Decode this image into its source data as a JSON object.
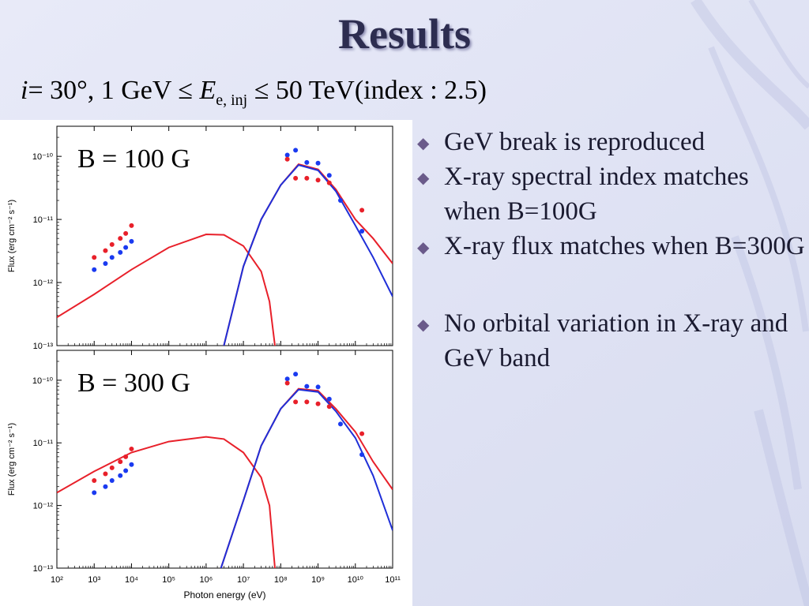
{
  "slide": {
    "title": "Results",
    "formula": {
      "i_label": "i",
      "angle": "= 30°, 1 GeV ≤ ",
      "E": "E",
      "sub": "e, inj",
      "rest": " ≤ 50 TeV(index : 2.5)"
    },
    "bullets": [
      {
        "text": "GeV break is reproduced"
      },
      {
        "text": "X-ray spectral index matches when B=100G"
      },
      {
        "text": "X-ray flux matches when B=300G"
      },
      {
        "text": "No orbital variation in X-ray and GeV band"
      }
    ],
    "colors": {
      "background": "#e4e6f6",
      "title": "#2d2d50",
      "model_red": "#e8202a",
      "model_blue": "#1f2fd8",
      "data_red": "#e8202a",
      "data_blue": "#1a3af0"
    }
  },
  "chart_data": [
    {
      "type": "line",
      "annotation": "B = 100 G",
      "xlabel": "Photon energy (eV)",
      "ylabel": "Flux (erg cm⁻² s⁻¹)",
      "xlim": [
        100,
        100000000000
      ],
      "ylim": [
        1e-13,
        3e-10
      ],
      "log_x": true,
      "log_y": true,
      "x_ticks": [
        "10²",
        "10³",
        "10⁴",
        "10⁵",
        "10⁶",
        "10⁷",
        "10⁸",
        "10⁹",
        "10¹⁰",
        "10¹¹"
      ],
      "y_ticks": [
        "10⁻¹³",
        "10⁻¹²",
        "10⁻¹¹",
        "10⁻¹⁰"
      ],
      "series": [
        {
          "color": "red",
          "points": [
            [
              100,
              2.8e-13
            ],
            [
              1000,
              6.5e-13
            ],
            [
              10000,
              1.6e-12
            ],
            [
              100000,
              3.6e-12
            ],
            [
              1000000,
              5.8e-12
            ],
            [
              3000000,
              5.7e-12
            ],
            [
              10000000,
              3.8e-12
            ],
            [
              30000000,
              1.5e-12
            ],
            [
              50000000,
              5e-13
            ],
            [
              70000000,
              1e-13
            ]
          ]
        },
        {
          "color": "red",
          "points": [
            [
              3000000,
              1e-13
            ],
            [
              10000000,
              1.8e-12
            ],
            [
              30000000,
              1e-11
            ],
            [
              100000000,
              3.5e-11
            ],
            [
              300000000,
              7.5e-11
            ],
            [
              1000000000,
              6.2e-11
            ],
            [
              3000000000,
              3e-11
            ],
            [
              10000000000,
              1e-11
            ],
            [
              30000000000,
              5e-12
            ],
            [
              100000000000,
              2e-12
            ]
          ]
        },
        {
          "color": "blue",
          "points": [
            [
              3000000,
              1e-13
            ],
            [
              10000000,
              1.8e-12
            ],
            [
              30000000,
              1e-11
            ],
            [
              100000000,
              3.5e-11
            ],
            [
              300000000,
              7.3e-11
            ],
            [
              1000000000,
              6e-11
            ],
            [
              3000000000,
              2.8e-11
            ],
            [
              10000000000,
              8e-12
            ],
            [
              30000000000,
              2.5e-12
            ],
            [
              100000000000,
              6e-13
            ]
          ]
        }
      ],
      "data_points": [
        {
          "color": "red",
          "points": [
            [
              1000,
              2.5e-12
            ],
            [
              2000,
              3.2e-12
            ],
            [
              3000,
              4e-12
            ],
            [
              5000,
              5e-12
            ],
            [
              7000,
              6e-12
            ],
            [
              10000,
              8e-12
            ]
          ]
        },
        {
          "color": "blue",
          "points": [
            [
              1000,
              1.6e-12
            ],
            [
              2000,
              2e-12
            ],
            [
              3000,
              2.5e-12
            ],
            [
              5000,
              3e-12
            ],
            [
              7000,
              3.6e-12
            ],
            [
              10000,
              4.5e-12
            ]
          ]
        },
        {
          "color": "blue",
          "points": [
            [
              150000000,
              1.05e-10
            ],
            [
              250000000,
              1.25e-10
            ],
            [
              500000000,
              8e-11
            ],
            [
              1000000000,
              7.8e-11
            ],
            [
              2000000000,
              5e-11
            ],
            [
              4000000000,
              2e-11
            ],
            [
              15000000000,
              6.5e-12
            ]
          ]
        },
        {
          "color": "red",
          "points": [
            [
              150000000,
              9e-11
            ],
            [
              250000000,
              4.5e-11
            ],
            [
              500000000,
              4.5e-11
            ],
            [
              1000000000,
              4.2e-11
            ],
            [
              2000000000,
              3.8e-11
            ],
            [
              15000000000,
              1.4e-11
            ]
          ]
        }
      ]
    },
    {
      "type": "line",
      "annotation": "B = 300 G",
      "xlabel": "Photon energy (eV)",
      "ylabel": "Flux (erg cm⁻² s⁻¹)",
      "xlim": [
        100,
        100000000000
      ],
      "ylim": [
        1e-13,
        3e-10
      ],
      "log_x": true,
      "log_y": true,
      "x_ticks": [
        "10²",
        "10³",
        "10⁴",
        "10⁵",
        "10⁶",
        "10⁷",
        "10⁸",
        "10⁹",
        "10¹⁰",
        "10¹¹"
      ],
      "y_ticks": [
        "10⁻¹³",
        "10⁻¹²",
        "10⁻¹¹",
        "10⁻¹⁰"
      ],
      "series": [
        {
          "color": "red",
          "points": [
            [
              100,
              1.6e-12
            ],
            [
              1000,
              3.5e-12
            ],
            [
              10000,
              7e-12
            ],
            [
              100000,
              1.05e-11
            ],
            [
              1000000,
              1.25e-11
            ],
            [
              3000000,
              1.15e-11
            ],
            [
              10000000,
              7e-12
            ],
            [
              30000000,
              2.8e-12
            ],
            [
              50000000,
              1e-12
            ],
            [
              70000000,
              1e-13
            ]
          ]
        },
        {
          "color": "red",
          "points": [
            [
              2500000,
              1e-13
            ],
            [
              10000000,
              1.2e-12
            ],
            [
              30000000,
              9e-12
            ],
            [
              100000000,
              3.5e-11
            ],
            [
              300000000,
              7.3e-11
            ],
            [
              1000000000,
              6.8e-11
            ],
            [
              3000000000,
              3.5e-11
            ],
            [
              10000000000,
              1.5e-11
            ],
            [
              30000000000,
              5e-12
            ],
            [
              100000000000,
              1.8e-12
            ]
          ]
        },
        {
          "color": "blue",
          "points": [
            [
              2500000,
              1e-13
            ],
            [
              10000000,
              1.2e-12
            ],
            [
              30000000,
              9e-12
            ],
            [
              100000000,
              3.5e-11
            ],
            [
              300000000,
              7.1e-11
            ],
            [
              1000000000,
              6.5e-11
            ],
            [
              3000000000,
              3.2e-11
            ],
            [
              10000000000,
              1.2e-11
            ],
            [
              30000000000,
              3e-12
            ],
            [
              100000000000,
              4e-13
            ]
          ]
        }
      ],
      "data_points": [
        {
          "color": "red",
          "points": [
            [
              1000,
              2.5e-12
            ],
            [
              2000,
              3.2e-12
            ],
            [
              3000,
              4e-12
            ],
            [
              5000,
              5e-12
            ],
            [
              7000,
              6e-12
            ],
            [
              10000,
              8e-12
            ]
          ]
        },
        {
          "color": "blue",
          "points": [
            [
              1000,
              1.6e-12
            ],
            [
              2000,
              2e-12
            ],
            [
              3000,
              2.5e-12
            ],
            [
              5000,
              3e-12
            ],
            [
              7000,
              3.6e-12
            ],
            [
              10000,
              4.5e-12
            ]
          ]
        },
        {
          "color": "blue",
          "points": [
            [
              150000000,
              1.05e-10
            ],
            [
              250000000,
              1.25e-10
            ],
            [
              500000000,
              8e-11
            ],
            [
              1000000000,
              7.8e-11
            ],
            [
              2000000000,
              5e-11
            ],
            [
              4000000000,
              2e-11
            ],
            [
              15000000000,
              6.5e-12
            ]
          ]
        },
        {
          "color": "red",
          "points": [
            [
              150000000,
              9e-11
            ],
            [
              250000000,
              4.5e-11
            ],
            [
              500000000,
              4.5e-11
            ],
            [
              1000000000,
              4.2e-11
            ],
            [
              2000000000,
              3.8e-11
            ],
            [
              15000000000,
              1.4e-11
            ]
          ]
        }
      ]
    }
  ]
}
